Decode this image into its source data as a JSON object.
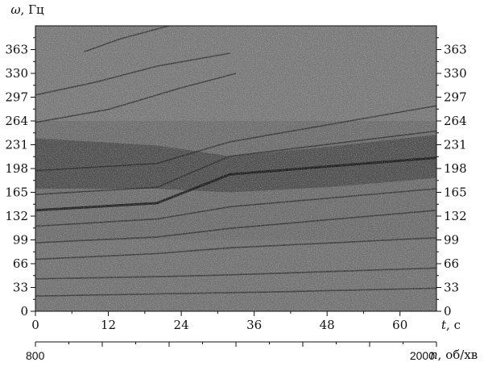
{
  "chart_data": {
    "type": "heatmap",
    "title": "",
    "y_axis": {
      "symbol": "ω",
      "unit": ", Гц",
      "range": [
        0,
        396
      ],
      "ticks": [
        0,
        33,
        66,
        99,
        132,
        165,
        198,
        231,
        264,
        297,
        330,
        363
      ]
    },
    "x_axis": {
      "symbol": "t",
      "unit": ", с",
      "range": [
        0,
        66
      ],
      "ticks": [
        0,
        12,
        24,
        36,
        48,
        60
      ]
    },
    "secondary_x_axis": {
      "symbol": "n",
      "unit": ", об/хв",
      "range": [
        800,
        2000
      ],
      "tick_labels": [
        {
          "value": 800,
          "label": "800"
        },
        {
          "value": 2000,
          "label": "2000"
        }
      ]
    },
    "harmonic_lines": [
      {
        "name": "",
        "points": [
          [
            0,
            21
          ],
          [
            20,
            24
          ],
          [
            40,
            27
          ],
          [
            66,
            32
          ]
        ]
      },
      {
        "name": "",
        "points": [
          [
            0,
            45
          ],
          [
            20,
            48
          ],
          [
            30,
            50
          ],
          [
            66,
            60
          ]
        ]
      },
      {
        "name": "",
        "points": [
          [
            0,
            72
          ],
          [
            20,
            80
          ],
          [
            32,
            88
          ],
          [
            66,
            102
          ]
        ]
      },
      {
        "name": "",
        "points": [
          [
            0,
            95
          ],
          [
            20,
            103
          ],
          [
            32,
            115
          ],
          [
            66,
            140
          ]
        ]
      },
      {
        "name": "",
        "points": [
          [
            0,
            118
          ],
          [
            20,
            128
          ],
          [
            32,
            145
          ],
          [
            66,
            170
          ]
        ]
      },
      {
        "name": "",
        "points": [
          [
            0,
            140
          ],
          [
            20,
            150
          ],
          [
            32,
            190
          ],
          [
            66,
            213
          ]
        ]
      },
      {
        "name": "",
        "points": [
          [
            0,
            162
          ],
          [
            20,
            172
          ],
          [
            32,
            215
          ],
          [
            66,
            250
          ]
        ]
      },
      {
        "name": "",
        "points": [
          [
            0,
            195
          ],
          [
            20,
            205
          ],
          [
            32,
            235
          ],
          [
            66,
            285
          ]
        ]
      },
      {
        "name": "",
        "points": [
          [
            0,
            262
          ],
          [
            12,
            280
          ],
          [
            24,
            310
          ],
          [
            33,
            330
          ]
        ]
      },
      {
        "name": "",
        "points": [
          [
            0,
            300
          ],
          [
            10,
            318
          ],
          [
            20,
            340
          ],
          [
            32,
            358
          ]
        ]
      },
      {
        "name": "",
        "points": [
          [
            8,
            360
          ],
          [
            14,
            378
          ],
          [
            22,
            396
          ]
        ]
      }
    ],
    "colors": {
      "background": "#6e6e6e",
      "dark_band": "#1e1e1e",
      "line": "#1a1a1a"
    },
    "grid": false,
    "legend": "none"
  }
}
